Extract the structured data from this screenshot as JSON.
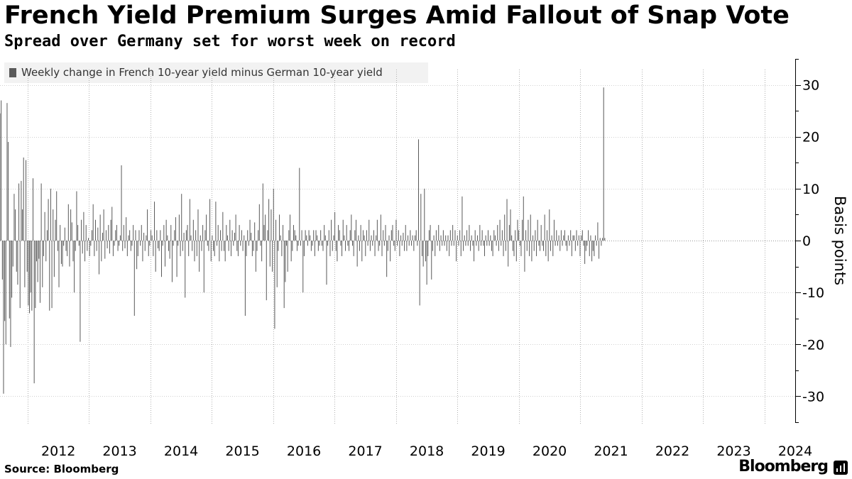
{
  "title": "French Yield Premium Surges Amid Fallout of Snap Vote",
  "subtitle": "Spread over Germany set for worst week on record",
  "source": "Source: Bloomberg",
  "brand": "Bloomberg",
  "colors": {
    "bar": "#595959",
    "axis": "#000000",
    "grid": "#cccccc"
  },
  "chart_data": {
    "type": "bar",
    "title": "French Yield Premium Surges Amid Fallout of Snap Vote",
    "subtitle": "Spread over Germany set for worst week on record",
    "legend": [
      "Weekly change in French 10-year yield minus German 10-year yield"
    ],
    "legend_position": "top-left",
    "ylabel": "Basis points",
    "ylim": [
      -35,
      35
    ],
    "yticks": [
      30,
      20,
      10,
      0,
      -10,
      -20,
      -30
    ],
    "ytick_labels": [
      "30",
      "20",
      "10",
      "0",
      "-10",
      "-20",
      "-30"
    ],
    "y_axis_side": "right",
    "x_start": 2011.55,
    "x_end": 2024.5,
    "xtick_years": [
      2012,
      2013,
      2014,
      2015,
      2016,
      2017,
      2018,
      2019,
      2020,
      2021,
      2022,
      2023,
      2024
    ],
    "xtick_labels": [
      "2012",
      "2013",
      "2014",
      "2015",
      "2016",
      "2017",
      "2018",
      "2019",
      "2020",
      "2021",
      "2022",
      "2023",
      "2024"
    ],
    "series": [
      {
        "name": "Weekly change in French 10-year yield minus German 10-year yield",
        "interval_years": 0.0192,
        "values": [
          24.5,
          27,
          -7.5,
          -29.5,
          -15.5,
          -20,
          26.5,
          19,
          -15,
          -20.5,
          -11,
          -5,
          9,
          6,
          -6,
          -8.5,
          11,
          -13,
          11.5,
          6,
          16,
          -9,
          15.5,
          -6,
          -12.5,
          -14,
          -10,
          -13.5,
          12,
          -27.5,
          -13,
          -4,
          -8,
          -3.5,
          -12,
          11,
          -9,
          -3,
          5.5,
          -4,
          2,
          8,
          -13.5,
          10,
          -13,
          6,
          -7,
          4,
          9.5,
          -2,
          -9,
          3,
          -4.5,
          -5,
          -1,
          2.5,
          -2,
          -3,
          7,
          -5,
          6,
          3.5,
          -4,
          -10,
          -2,
          9.5,
          3,
          -1,
          -19.5,
          4,
          -2.5,
          5.5,
          -4,
          3,
          -2,
          0.5,
          -3,
          -1,
          2,
          7,
          -3,
          4,
          -2,
          2.5,
          -6.5,
          5,
          -4,
          1.5,
          6,
          -3.5,
          2,
          -1.5,
          3,
          -2.5,
          4,
          6.5,
          -3,
          -1,
          2,
          3,
          -2,
          -1,
          1,
          14.5,
          -2,
          3,
          -1.5,
          4.5,
          -3,
          1,
          2,
          -2,
          -1,
          3,
          -14.5,
          2,
          -5.5,
          -3,
          2,
          -1,
          3,
          -4,
          1.5,
          -2,
          1,
          6,
          -3,
          -1,
          2,
          1,
          -3,
          7.5,
          -6,
          2,
          -1.5,
          -2,
          2,
          -7,
          -1,
          3,
          -5,
          4,
          1,
          -2,
          -3.5,
          3,
          -8,
          -1,
          2,
          4.5,
          -7,
          -1,
          5,
          -3,
          9,
          -2,
          1.5,
          -11,
          2,
          3,
          -3,
          8,
          1,
          -2,
          4,
          -4,
          2,
          -3,
          6,
          -6,
          1,
          -2,
          3,
          -10,
          2,
          5,
          -1,
          -2,
          8,
          -4,
          1,
          -2,
          -3,
          7.5,
          -1,
          3,
          -4,
          2,
          -2,
          5.5,
          -2,
          -4,
          3,
          1,
          -2,
          4,
          -3,
          2,
          -1,
          1.5,
          5,
          -2,
          -3,
          3,
          -1,
          2,
          -2,
          1,
          -14.5,
          -3,
          2,
          -1,
          4,
          1.5,
          -3,
          -2,
          3.5,
          -6,
          -2,
          2,
          7,
          -1,
          -4,
          11,
          3,
          5,
          -11.5,
          2,
          8,
          -5,
          6,
          -6,
          10,
          -17,
          4,
          -9,
          -2,
          5,
          1,
          -3,
          3,
          -13,
          -8,
          -1,
          -6,
          2,
          5,
          -4,
          -2,
          3,
          2,
          1,
          -2,
          -1,
          14,
          -1,
          2,
          -10,
          -3,
          2,
          1,
          -1,
          2,
          1,
          -2,
          -1,
          2,
          -3,
          2,
          1,
          -2,
          -1,
          2,
          -1,
          -2,
          3,
          1,
          -8.5,
          -1,
          2,
          -3,
          4,
          -2,
          1,
          5.5,
          -2,
          -4,
          3,
          2,
          -1,
          -3,
          4,
          1,
          -2,
          3,
          -1,
          -2,
          2,
          5,
          -1,
          -3,
          2,
          4,
          -5,
          1,
          -2,
          3,
          -4,
          2,
          1,
          -3,
          2,
          -1,
          4,
          -2,
          1,
          -1,
          2,
          -3,
          1,
          4,
          -2,
          -1,
          5,
          -3,
          2,
          -1,
          3,
          -7,
          -2,
          1,
          -4,
          2,
          3,
          -1,
          -2,
          4,
          -1,
          2,
          -3,
          1,
          -1,
          1.5,
          -2,
          3,
          -2,
          1,
          -1,
          2,
          -1,
          1,
          -2,
          1,
          2,
          -1,
          19.5,
          -12.5,
          9,
          -3,
          -5,
          10,
          -4,
          -8.5,
          -3,
          2,
          3,
          -7.5,
          -2,
          1,
          -3,
          2,
          -1,
          3,
          -2,
          1,
          -1,
          2,
          -1,
          1,
          -2,
          1,
          -3,
          2,
          -1,
          3,
          -1,
          2,
          -4,
          1,
          -1,
          2,
          -3,
          8.5,
          -2,
          1,
          -1,
          2,
          -1,
          3,
          -2,
          1,
          -1,
          -4,
          2,
          -1,
          1,
          -2,
          3,
          -1,
          2,
          -1,
          -3,
          1,
          -1,
          2,
          -1,
          1,
          -2,
          -3,
          2,
          1,
          -1,
          3,
          -2,
          4,
          -1,
          2,
          -3,
          5,
          -2,
          8,
          -5,
          3,
          6,
          1,
          -2,
          -3,
          2,
          -4,
          4,
          2,
          -1,
          -3,
          4,
          8.5,
          -6,
          2,
          -2,
          4,
          -3,
          5,
          -4,
          1,
          -2,
          2,
          -3,
          4,
          -1,
          -2,
          3,
          -1,
          -2,
          5,
          -3,
          2,
          -4,
          6,
          -2,
          1,
          -3,
          4,
          -1,
          2,
          -1,
          1,
          -2,
          2,
          -1,
          1,
          2,
          -1,
          -2,
          1,
          -1,
          2,
          -3,
          1,
          1,
          -2,
          2,
          -1,
          1,
          -3,
          1,
          2,
          -1,
          -4.5,
          -2,
          -1,
          2,
          -3,
          1,
          -4,
          -2,
          -3,
          1,
          -1,
          3.5,
          -3.5,
          0.5,
          -1,
          0.5,
          29.5,
          0.5
        ]
      }
    ]
  }
}
